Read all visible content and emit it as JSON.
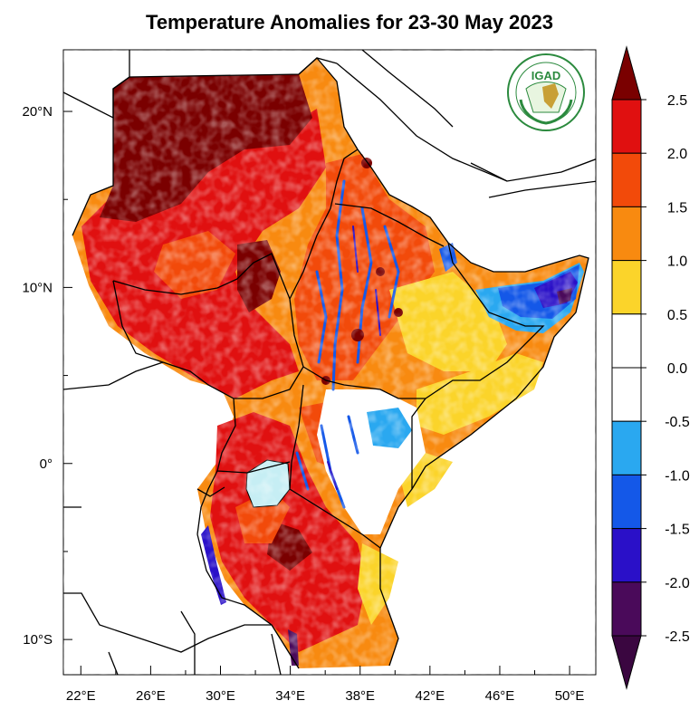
{
  "title": "Temperature Anomalies for 23-30 May 2023",
  "logo": {
    "text": "IGAD",
    "ring_text": "INTERGOVERNMENTAL AUTHORITY ON DEVELOPMENT"
  },
  "map": {
    "lon_range": [
      21,
      51.5
    ],
    "lat_range": [
      -12,
      23.5
    ],
    "lon_ticks": [
      22,
      26,
      30,
      34,
      38,
      42,
      46,
      50
    ],
    "lon_tick_labels": [
      "22°E",
      "26°E",
      "30°E",
      "34°E",
      "38°E",
      "42°E",
      "46°E",
      "50°E"
    ],
    "lat_ticks": [
      20,
      10,
      0,
      -10
    ],
    "lat_tick_labels": [
      "20°N",
      "10°N",
      "0°",
      "10°S"
    ]
  },
  "colorbar": {
    "levels": [
      "2.5",
      "2.0",
      "1.5",
      "1.0",
      "0.5",
      "0.0",
      "-0.5",
      "-1.0",
      "-1.5",
      "-2.0",
      "-2.5"
    ],
    "colors": [
      "#7a0000",
      "#e01010",
      "#f24a0a",
      "#f88a10",
      "#fbd42a",
      "#ffffff",
      "#ffffff",
      "#2aa8f0",
      "#1458e8",
      "#2a10c8",
      "#4a0a5a",
      "#3a0640"
    ]
  },
  "palette": {
    "land_bg": "#fbd42a",
    "lake": "#c6eef4"
  }
}
